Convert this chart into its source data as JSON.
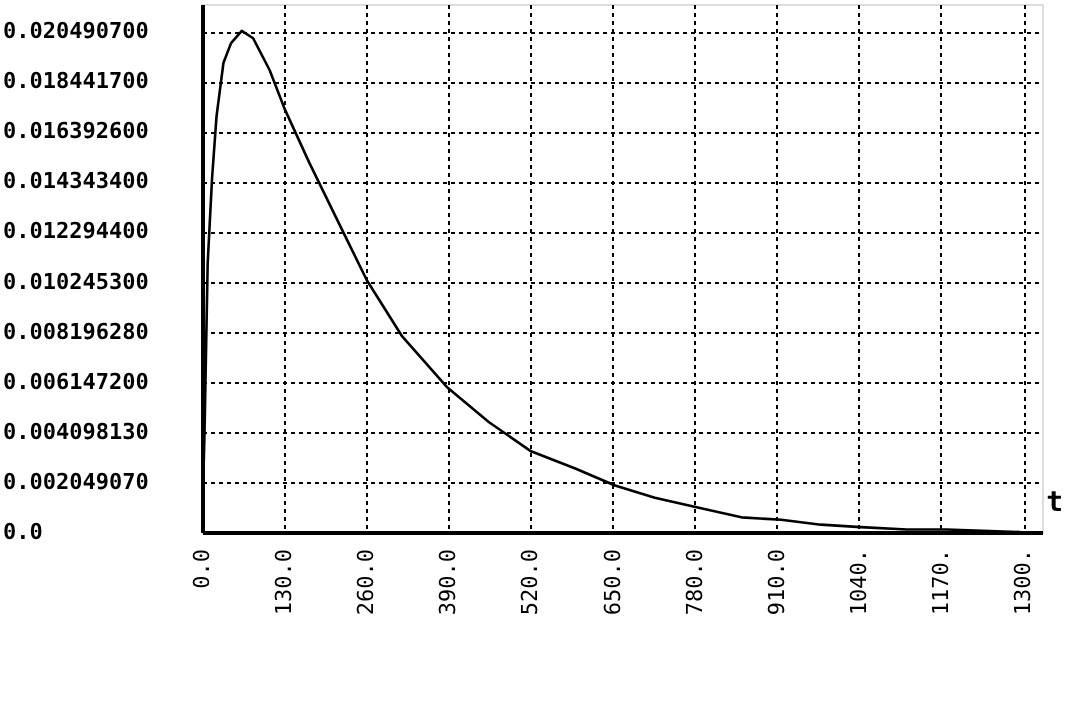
{
  "chart_data": {
    "type": "line",
    "xlabel": "t",
    "x": [
      0,
      4,
      9,
      16,
      23,
      34,
      46,
      63,
      81,
      107,
      131,
      170,
      223,
      261,
      317,
      389,
      454,
      521,
      591,
      654,
      717,
      785,
      854,
      917,
      980,
      1043,
      1116,
      1179,
      1295
    ],
    "values": [
      0,
      0.0041,
      0.011,
      0.0145,
      0.017,
      0.0192,
      0.02,
      0.0205,
      0.0202,
      0.0189,
      0.0173,
      0.0151,
      0.0123,
      0.0103,
      0.008,
      0.0059,
      0.0045,
      0.0033,
      0.0026,
      0.0019,
      0.0014,
      0.001,
      0.0006,
      0.0005,
      0.0003,
      0.0002,
      0.0001,
      0.0001,
      0
    ],
    "color": "#000000",
    "xlim": [
      0,
      1330
    ],
    "ylim": [
      0,
      0.0216
    ],
    "xticks": [
      {
        "value": 0,
        "label": "0.0"
      },
      {
        "value": 130,
        "label": "130.0"
      },
      {
        "value": 260,
        "label": "260.0"
      },
      {
        "value": 390,
        "label": "390.0"
      },
      {
        "value": 520,
        "label": "520.0"
      },
      {
        "value": 650,
        "label": "650.0"
      },
      {
        "value": 780,
        "label": "780.0"
      },
      {
        "value": 910,
        "label": "910.0"
      },
      {
        "value": 1040,
        "label": "1040."
      },
      {
        "value": 1170,
        "label": "1170."
      },
      {
        "value": 1300,
        "label": "1300."
      }
    ],
    "yticks": [
      {
        "value": 0,
        "label": "0.0"
      },
      {
        "value": 0.00204907,
        "label": "0.002049070"
      },
      {
        "value": 0.00409813,
        "label": "0.004098130"
      },
      {
        "value": 0.0061472,
        "label": "0.006147200"
      },
      {
        "value": 0.00819628,
        "label": "0.008196280"
      },
      {
        "value": 0.0102453,
        "label": "0.010245300"
      },
      {
        "value": 0.0122944,
        "label": "0.012294400"
      },
      {
        "value": 0.0143434,
        "label": "0.014343400"
      },
      {
        "value": 0.0163926,
        "label": "0.016392600"
      },
      {
        "value": 0.0184417,
        "label": "0.018441700"
      },
      {
        "value": 0.0204907,
        "label": "0.020490700"
      }
    ],
    "grid": true,
    "line_style": "solid",
    "marker": "none"
  }
}
